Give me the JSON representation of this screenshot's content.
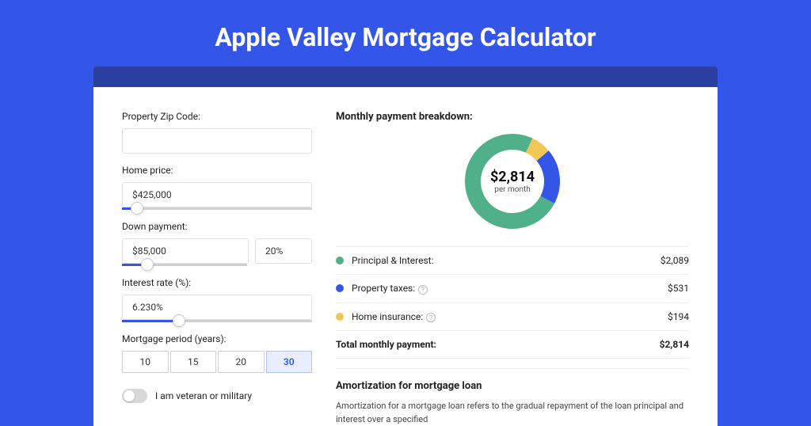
{
  "page": {
    "title": "Apple Valley Mortgage Calculator",
    "bg_color": "#3456e8",
    "strip_color": "#2a3f9f",
    "card_bg": "#ffffff"
  },
  "form": {
    "zip": {
      "label": "Property Zip Code:",
      "value": ""
    },
    "home_price": {
      "label": "Home price:",
      "value": "$425,000",
      "slider_pct": 8
    },
    "down_payment": {
      "label": "Down payment:",
      "value": "$85,000",
      "pct": "20%",
      "slider_pct": 20
    },
    "interest_rate": {
      "label": "Interest rate (%):",
      "value": "6.230%",
      "slider_pct": 30
    },
    "mortgage_period": {
      "label": "Mortgage period (years):",
      "options": [
        "10",
        "15",
        "20",
        "30"
      ],
      "selected": "30"
    },
    "veteran": {
      "label": "I am veteran or military",
      "checked": false
    }
  },
  "breakdown": {
    "title": "Monthly payment breakdown:",
    "total_value": "$2,814",
    "total_sub": "per month",
    "donut": {
      "segments": [
        {
          "label": "Principal & Interest",
          "key": "principal",
          "color": "#4fb08a",
          "value": 2089,
          "display": "$2,089"
        },
        {
          "label": "Property taxes",
          "key": "taxes",
          "color": "#3456e8",
          "value": 531,
          "display": "$531",
          "info": true
        },
        {
          "label": "Home insurance",
          "key": "insurance",
          "color": "#f1c756",
          "value": 194,
          "display": "$194",
          "info": true
        }
      ],
      "stroke_width": 20,
      "radius": 50
    },
    "total_row": {
      "label": "Total monthly payment:",
      "display": "$2,814"
    }
  },
  "amort": {
    "title": "Amortization for mortgage loan",
    "text": "Amortization for a mortgage loan refers to the gradual repayment of the loan principal and interest over a specified"
  }
}
